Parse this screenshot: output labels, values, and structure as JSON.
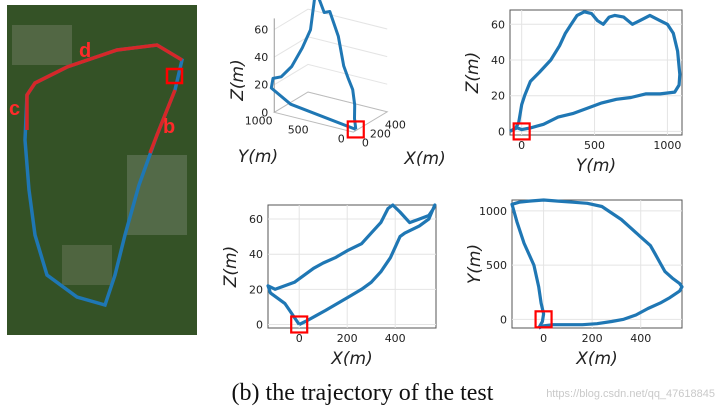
{
  "caption": "(b) the trajectory of the test",
  "watermark": "https://blog.csdn.net/qq_47618845",
  "map": {
    "labels": [
      "d",
      "c",
      "b"
    ],
    "colors": {
      "track_blue": "#1f77b4",
      "track_red": "#d62728",
      "marker_red": "#ff0000"
    }
  },
  "chart_data": [
    {
      "id": "panel-3d",
      "type": "line",
      "title": "",
      "xlabel": "X(m)",
      "ylabel": "Y(m)",
      "zlabel": "Z(m)",
      "xticks": [
        "0",
        "200",
        "400"
      ],
      "yticks": [
        "0",
        "500",
        "1000"
      ],
      "zticks": [
        "0",
        "20",
        "40",
        "60"
      ],
      "series": [
        {
          "x": [
            0,
            60,
            120,
            180,
            220,
            300,
            420,
            450,
            520,
            560,
            520,
            420,
            260,
            100,
            0,
            -70,
            -120,
            0
          ],
          "y": [
            -80,
            0,
            60,
            150,
            250,
            400,
            600,
            750,
            900,
            1060,
            1090,
            1100,
            1080,
            1060,
            1070,
            1020,
            700,
            -80
          ],
          "z": [
            0,
            5,
            12,
            20,
            25,
            30,
            45,
            60,
            55,
            68,
            40,
            30,
            22,
            20,
            22,
            18,
            12,
            0
          ]
        }
      ]
    },
    {
      "id": "panel-yz",
      "type": "line",
      "title": "",
      "xlabel": "Y(m)",
      "ylabel": "Z(m)",
      "xlim": [
        -80,
        1100
      ],
      "ylim": [
        -2,
        68
      ],
      "xticks": [
        0,
        500,
        1000
      ],
      "yticks": [
        0,
        20,
        40,
        60
      ],
      "series": [
        {
          "x": [
            -80,
            -60,
            -30,
            0,
            60,
            150,
            250,
            350,
            450,
            550,
            650,
            750,
            850,
            950,
            1050,
            1080,
            1085,
            1070,
            1040,
            1000,
            950,
            880,
            810,
            760,
            700,
            640,
            600,
            560,
            520,
            480,
            430,
            380,
            340,
            300,
            260,
            200,
            120,
            60,
            20,
            0,
            -10,
            -20,
            -40,
            -60,
            -80
          ],
          "y": [
            0,
            1,
            2,
            1,
            2,
            4,
            8,
            10,
            13,
            16,
            18,
            19,
            21,
            21,
            22,
            26,
            32,
            45,
            55,
            60,
            62,
            65,
            62,
            60,
            64,
            65,
            64,
            60,
            62,
            66,
            67,
            65,
            60,
            55,
            48,
            40,
            33,
            28,
            20,
            15,
            10,
            5,
            2,
            1,
            0
          ]
        }
      ]
    },
    {
      "id": "panel-xz",
      "type": "line",
      "title": "",
      "xlabel": "X(m)",
      "ylabel": "Z(m)",
      "xlim": [
        -130,
        570
      ],
      "ylim": [
        -2,
        68
      ],
      "xticks": [
        0,
        200,
        400
      ],
      "yticks": [
        0,
        20,
        40,
        60
      ],
      "series": [
        {
          "x": [
            0,
            30,
            70,
            110,
            160,
            210,
            260,
            300,
            340,
            380,
            400,
            420,
            440,
            470,
            500,
            540,
            565,
            560,
            540,
            500,
            460,
            420,
            390,
            370,
            340,
            300,
            260,
            200,
            150,
            100,
            60,
            20,
            -20,
            -60,
            -100,
            -130,
            -120,
            -100,
            -80,
            -60,
            -40,
            -20,
            0
          ],
          "y": [
            0,
            2,
            5,
            8,
            12,
            16,
            20,
            24,
            30,
            38,
            44,
            50,
            52,
            54,
            56,
            60,
            68,
            66,
            62,
            60,
            58,
            64,
            68,
            66,
            58,
            52,
            46,
            42,
            38,
            35,
            32,
            28,
            24,
            22,
            20,
            22,
            18,
            16,
            14,
            12,
            8,
            4,
            0
          ]
        }
      ]
    },
    {
      "id": "panel-xy",
      "type": "line",
      "title": "",
      "xlabel": "X(m)",
      "ylabel": "Y(m)",
      "xlim": [
        -130,
        570
      ],
      "ylim": [
        -80,
        1100
      ],
      "xticks": [
        0,
        200,
        400
      ],
      "yticks": [
        0,
        500,
        1000
      ],
      "series": [
        {
          "x": [
            -20,
            0,
            40,
            100,
            160,
            220,
            280,
            330,
            380,
            430,
            480,
            520,
            560,
            570,
            560,
            530,
            500,
            480,
            460,
            440,
            400,
            360,
            320,
            280,
            240,
            180,
            120,
            60,
            0,
            -60,
            -100,
            -130,
            -110,
            -80,
            -40,
            -20,
            -10,
            0,
            -5,
            -20
          ],
          "y": [
            -80,
            -60,
            -50,
            -50,
            -50,
            -40,
            -20,
            0,
            40,
            100,
            150,
            200,
            260,
            300,
            330,
            380,
            440,
            520,
            600,
            680,
            760,
            840,
            920,
            980,
            1040,
            1070,
            1080,
            1090,
            1100,
            1090,
            1080,
            1060,
            900,
            700,
            500,
            300,
            150,
            50,
            -20,
            -80
          ]
        }
      ]
    }
  ]
}
